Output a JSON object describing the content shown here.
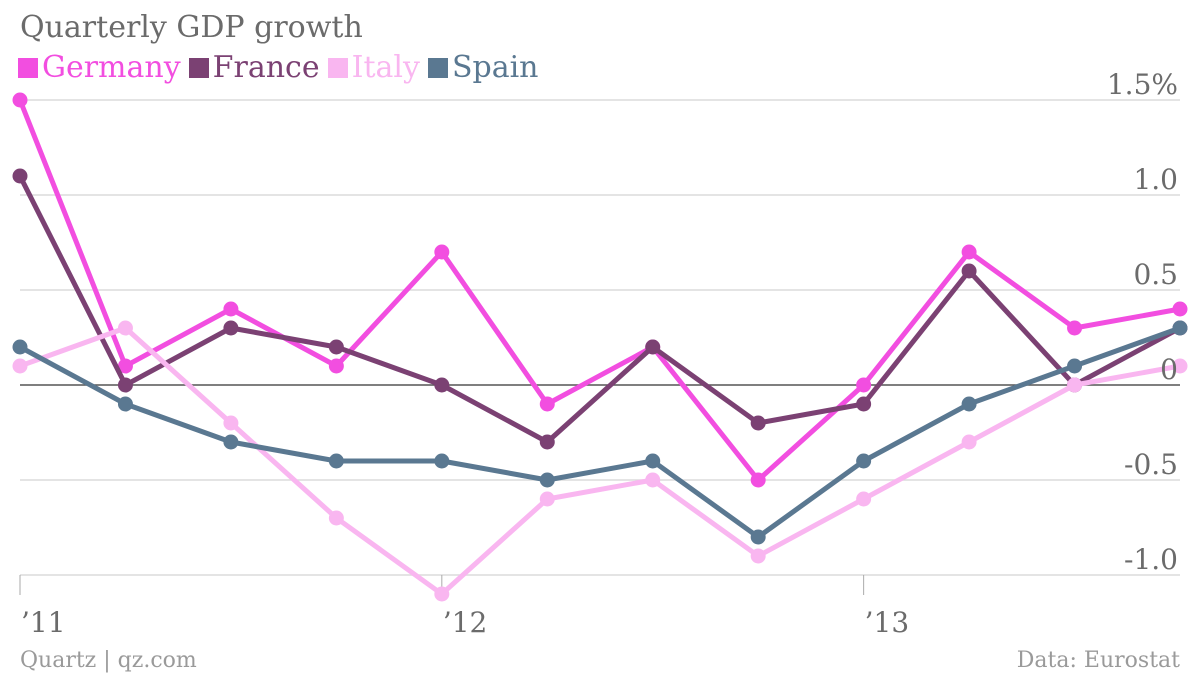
{
  "chart_data": {
    "type": "line",
    "title": "Quarterly GDP growth",
    "categories": [
      "Q1 2011",
      "Q2 2011",
      "Q3 2011",
      "Q4 2011",
      "Q1 2012",
      "Q2 2012",
      "Q3 2012",
      "Q4 2012",
      "Q1 2013",
      "Q2 2013",
      "Q3 2013",
      "Q4 2013"
    ],
    "x_tick_labels": [
      {
        "index": 0,
        "label": "’11"
      },
      {
        "index": 4,
        "label": "’12"
      },
      {
        "index": 8,
        "label": "’13"
      }
    ],
    "y_ticks": [
      {
        "value": 1.5,
        "label": "1.5%"
      },
      {
        "value": 1.0,
        "label": "1.0"
      },
      {
        "value": 0.5,
        "label": "0.5"
      },
      {
        "value": 0,
        "label": "0"
      },
      {
        "value": -0.5,
        "label": "-0.5"
      },
      {
        "value": -1.0,
        "label": "-1.0"
      }
    ],
    "ylim": [
      -1.1,
      1.6
    ],
    "grid": true,
    "legend_position": "top-left",
    "y_axis_position": "right",
    "series": [
      {
        "name": "Germany",
        "color": "#f24ee0",
        "values": [
          1.5,
          0.1,
          0.4,
          0.1,
          0.7,
          -0.1,
          0.2,
          -0.5,
          0.0,
          0.7,
          0.3,
          0.4
        ]
      },
      {
        "name": "France",
        "color": "#7b4173",
        "values": [
          1.1,
          0.0,
          0.3,
          0.2,
          0.0,
          -0.3,
          0.2,
          -0.2,
          -0.1,
          0.6,
          0.0,
          0.3
        ]
      },
      {
        "name": "Italy",
        "color": "#f9b6f0",
        "values": [
          0.1,
          0.3,
          -0.2,
          -0.7,
          -1.1,
          -0.6,
          -0.5,
          -0.9,
          -0.6,
          -0.3,
          0.0,
          0.1
        ]
      },
      {
        "name": "Spain",
        "color": "#5a7891",
        "values": [
          0.2,
          -0.1,
          -0.3,
          -0.4,
          -0.4,
          -0.5,
          -0.4,
          -0.8,
          -0.4,
          -0.1,
          0.1,
          0.3
        ]
      }
    ]
  },
  "footer": {
    "source_left": "Quartz | qz.com",
    "source_right": "Data: Eurostat"
  }
}
